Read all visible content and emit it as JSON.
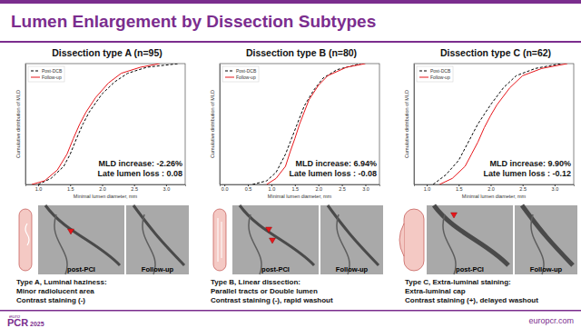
{
  "header": {
    "title": "Lumen Enlargement by Dissection Subtypes"
  },
  "chart_data": [
    {
      "type": "line",
      "title": "Dissection type A (n=95)",
      "xlabel": "Minimal lumen diameter, mm",
      "ylabel": "Cumulative distribution of MLD",
      "xlim": [
        0.8,
        3.3
      ],
      "ylim": [
        0,
        1
      ],
      "xticks": [
        {
          "value": 1,
          "label": "1.0"
        },
        1.5,
        {
          "value": 2,
          "label": "2.0"
        },
        2.5,
        {
          "value": 3,
          "label": "3.0"
        }
      ],
      "tick_labels": "x",
      "legend": "upper left",
      "annotations": [
        "MLD increase: -2.26%",
        "Late lumen loss : 0.08"
      ],
      "series": [
        {
          "name": "Post-DCB",
          "color": "#000000",
          "line_style": "dashed",
          "x": [
            1.0,
            1.2,
            1.4,
            1.5,
            1.6,
            1.7,
            1.8,
            2.0,
            2.2,
            2.4,
            2.7,
            3.2
          ],
          "values": [
            0,
            0.05,
            0.15,
            0.25,
            0.38,
            0.5,
            0.6,
            0.75,
            0.85,
            0.92,
            0.97,
            1.0
          ]
        },
        {
          "name": "Follow-up",
          "color": "#e8161b",
          "line_style": "solid",
          "x": [
            0.9,
            1.1,
            1.3,
            1.45,
            1.55,
            1.65,
            1.75,
            1.9,
            2.1,
            2.3,
            2.6,
            2.9
          ],
          "values": [
            0,
            0.03,
            0.12,
            0.25,
            0.38,
            0.5,
            0.6,
            0.72,
            0.84,
            0.92,
            0.97,
            1.0
          ]
        }
      ]
    },
    {
      "type": "line",
      "title": "Dissection type B (n=80)",
      "xlabel": "Minimal lumen diameter, mm",
      "ylabel": "Cumulative distribution of MLD",
      "xlim": [
        -0.1,
        3.3
      ],
      "ylim": [
        0,
        1
      ],
      "xticks": [
        {
          "value": 0,
          "label": "0.0"
        },
        0.5,
        {
          "value": 1,
          "label": "1.0"
        },
        1.5,
        {
          "value": 2,
          "label": "2.0"
        },
        2.5,
        {
          "value": 3,
          "label": "3.0"
        }
      ],
      "tick_labels": "x",
      "legend": "upper left",
      "annotations": [
        "MLD increase: 6.94%",
        "Late lumen loss : -0.08"
      ],
      "series": [
        {
          "name": "Post-DCB",
          "color": "#000000",
          "line_style": "dashed",
          "x": [
            0.6,
            0.9,
            1.1,
            1.3,
            1.4,
            1.5,
            1.6,
            1.7,
            1.9,
            2.1,
            2.4,
            2.9
          ],
          "values": [
            0,
            0.03,
            0.1,
            0.25,
            0.35,
            0.45,
            0.55,
            0.65,
            0.78,
            0.88,
            0.95,
            1.0
          ]
        },
        {
          "name": "Follow-up",
          "color": "#e8161b",
          "line_style": "solid",
          "x": [
            0.9,
            1.1,
            1.3,
            1.4,
            1.5,
            1.6,
            1.7,
            1.8,
            2.0,
            2.2,
            2.6,
            3.0
          ],
          "values": [
            0,
            0.05,
            0.15,
            0.27,
            0.38,
            0.5,
            0.6,
            0.7,
            0.82,
            0.9,
            0.97,
            1.0
          ]
        }
      ]
    },
    {
      "type": "line",
      "title": "Dissection type C (n=62)",
      "xlabel": "Minimal lumen diameter, mm",
      "ylabel": "Cumulative distribution of MLD",
      "xlim": [
        0.8,
        3.3
      ],
      "ylim": [
        0,
        1
      ],
      "xticks": [
        {
          "value": 1,
          "label": "1.0"
        },
        1.5,
        {
          "value": 2,
          "label": "2.0"
        },
        2.5,
        {
          "value": 3,
          "label": "3.0"
        }
      ],
      "tick_labels": "x",
      "legend": "upper left",
      "annotations": [
        "MLD increase: 9.90%",
        "Late lumen loss : -0.12"
      ],
      "series": [
        {
          "name": "Post-DCB",
          "color": "#000000",
          "line_style": "dashed",
          "x": [
            1.1,
            1.3,
            1.5,
            1.6,
            1.7,
            1.8,
            1.9,
            2.0,
            2.2,
            2.4,
            2.7,
            3.1
          ],
          "values": [
            0,
            0.08,
            0.2,
            0.3,
            0.4,
            0.5,
            0.58,
            0.66,
            0.8,
            0.9,
            0.96,
            1.0
          ]
        },
        {
          "name": "Follow-up",
          "color": "#e8161b",
          "line_style": "solid",
          "x": [
            1.2,
            1.4,
            1.6,
            1.7,
            1.8,
            1.9,
            2.0,
            2.1,
            2.3,
            2.5,
            2.8,
            3.2
          ],
          "values": [
            0,
            0.05,
            0.15,
            0.25,
            0.35,
            0.47,
            0.57,
            0.66,
            0.8,
            0.9,
            0.96,
            1.0
          ]
        }
      ]
    }
  ],
  "panels": [
    {
      "image_labels": [
        "post-PCI",
        "Follow-up"
      ],
      "caption": [
        "Type A, Luminal haziness:",
        "Minor radiolucent area",
        "Contrast staining (-)"
      ]
    },
    {
      "image_labels": [
        "post-PCI",
        "Follow-up"
      ],
      "caption": [
        "Type B, Linear dissection:",
        "Parallel tracts or Double lumen",
        "Contrast staining (-), rapid washout"
      ]
    },
    {
      "image_labels": [
        "post-PCI",
        "Follow-up"
      ],
      "caption": [
        "Type C, Extra-luminal staining:",
        "Extra-luminal cap",
        "Contrast staining (+), delayed washout"
      ]
    }
  ],
  "footer": {
    "logo_small": "euro",
    "logo": "PCR",
    "year": "2025",
    "url": "europcr.com"
  }
}
